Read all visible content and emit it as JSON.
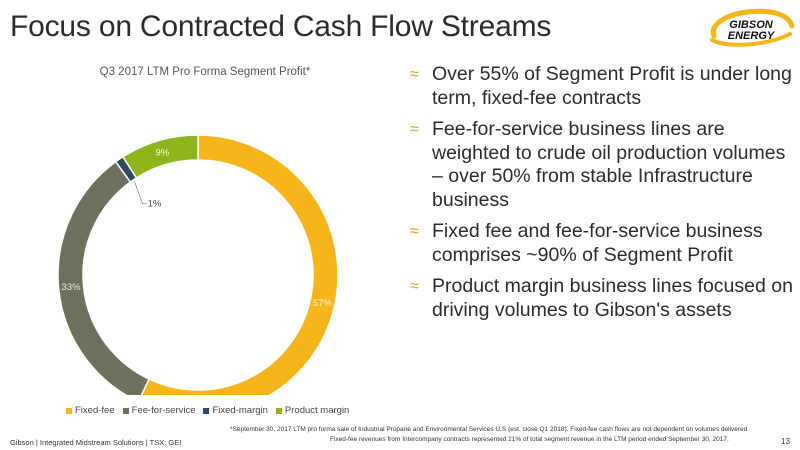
{
  "slide": {
    "title": "Focus on Contracted Cash Flow Streams",
    "logo_text": [
      "GIBSON",
      "ENERGY"
    ],
    "footer": "Gibson  |  Integrated Midstream Solutions  |  TSX: GEI",
    "page_number": "13",
    "footnote_line1": "*September 30, 2017 LTM pro forma sale of Industrial Propane and Environmental Services U.S (est. close Q1 2018). Fixed-fee cash flows are not dependent on volumes delivered",
    "footnote_line2": "Fixed-fee revenues from Intercompany contracts represented 21% of total segment revenue in the LTM period ended September 30, 2017."
  },
  "bullets": [
    "Over 55% of Segment Profit is under long term, fixed-fee contracts",
    "Fee-for-service business lines are weighted to crude oil production volumes – over 50% from stable Infrastructure business",
    "Fixed fee and fee-for-service business comprises ~90% of Segment Profit",
    "Product margin business lines focused on driving volumes to Gibson's assets"
  ],
  "colors": {
    "fixed_fee": "#f6b51b",
    "fee_for_service": "#6f6f5d",
    "fixed_margin": "#2e4a5f",
    "product_margin": "#8db51b",
    "accent": "#d8a31a"
  },
  "chart_data": {
    "type": "pie",
    "subtype": "donut",
    "title": "Q3 2017 LTM Pro Forma Segment Profit*",
    "categories": [
      "Fixed-fee",
      "Fee-for-service",
      "Fixed-margin",
      "Product margin"
    ],
    "values": [
      57,
      33,
      1,
      9
    ],
    "labels": [
      "57%",
      "33%",
      "1%",
      "9%"
    ],
    "legend_position": "bottom"
  }
}
